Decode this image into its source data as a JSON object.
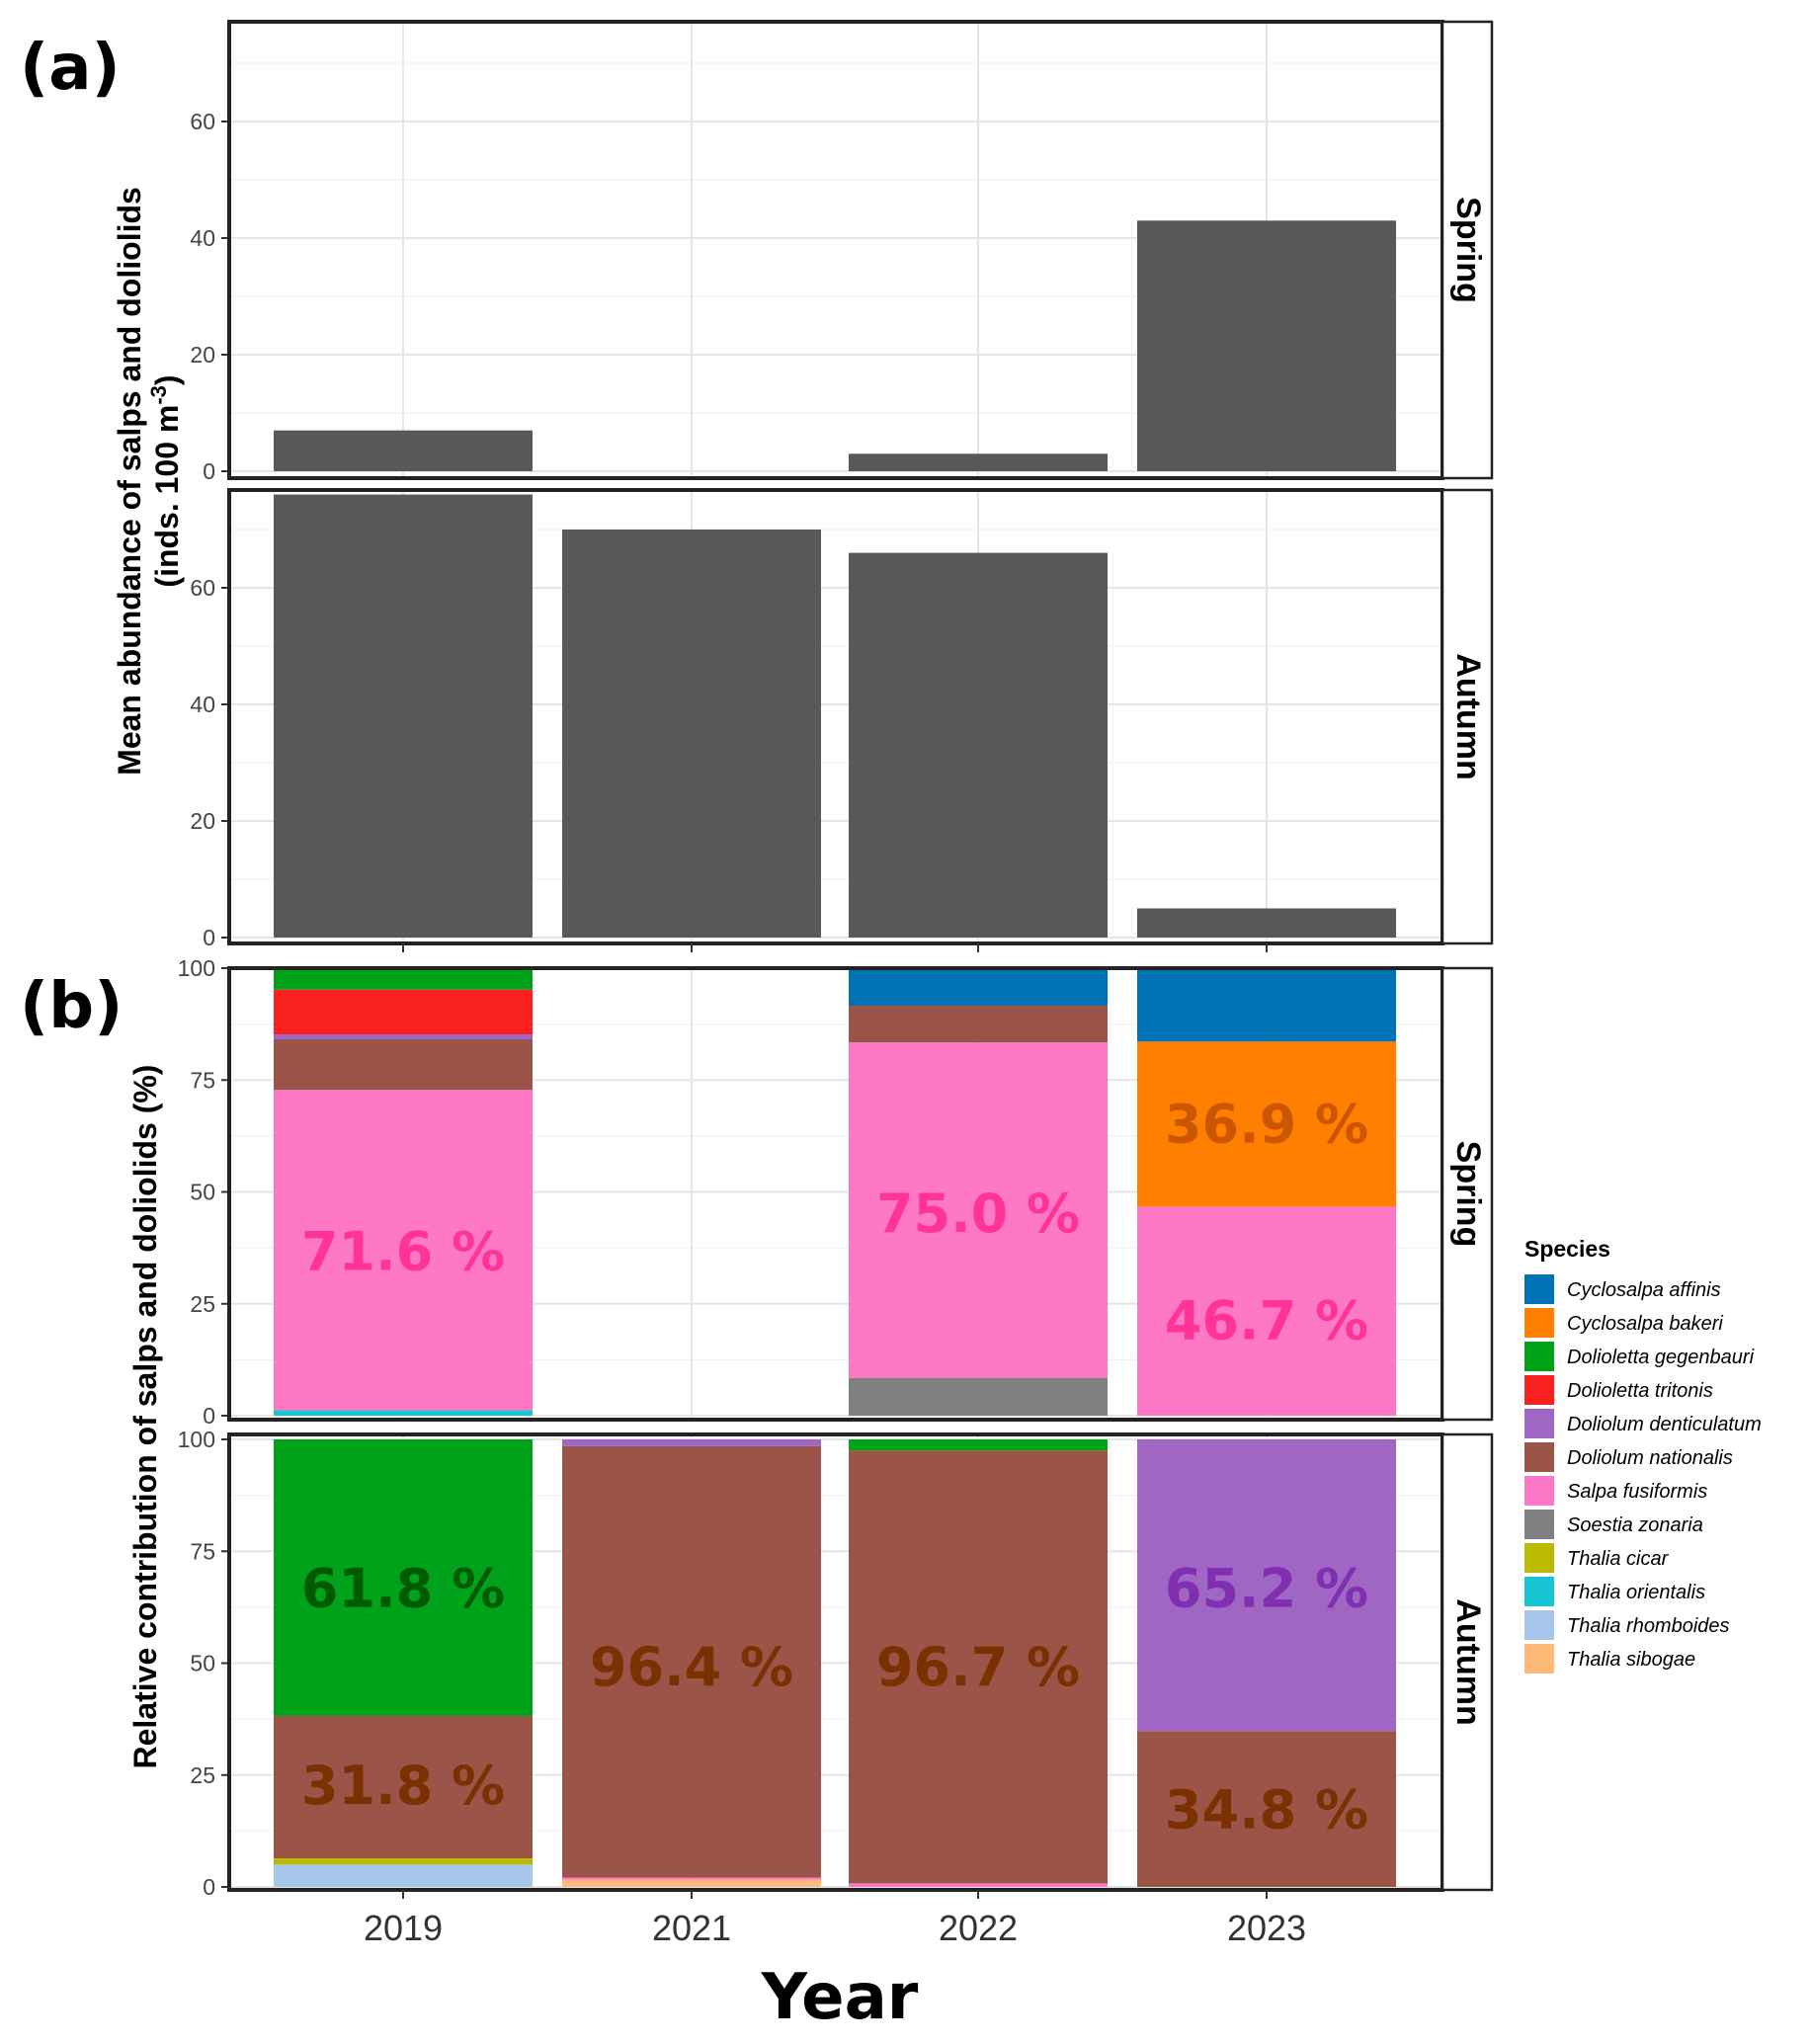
{
  "figure": {
    "xlabel": "Year",
    "years": [
      "2019",
      "2021",
      "2022",
      "2023"
    ]
  },
  "chart_data": [
    {
      "panel_label": "(a)",
      "type": "bar",
      "ylabel_line1": "Mean abundance of salps and doliolids",
      "ylabel_line2": "(inds. 100 m",
      "ylabel_sup": "-3",
      "ylabel_close": ")",
      "ylim": [
        0,
        77
      ],
      "yticks": [
        0,
        20,
        40,
        60
      ],
      "facets": [
        {
          "label": "Spring",
          "categories": [
            "2019",
            "2021",
            "2022",
            "2023"
          ],
          "values": [
            7,
            0,
            3,
            43
          ]
        },
        {
          "label": "Autumn",
          "categories": [
            "2019",
            "2021",
            "2022",
            "2023"
          ],
          "values": [
            76,
            70,
            66,
            5
          ]
        }
      ],
      "bar_color": "#595959"
    },
    {
      "panel_label": "(b)",
      "type": "stacked_bar",
      "ylabel": "Relative contribution of salps and doliolids (%)",
      "ylim": [
        0,
        100
      ],
      "yticks": [
        0,
        25,
        50,
        75,
        100
      ],
      "legend_title": "Species",
      "species": [
        {
          "name": "Cyclosalpa affinis",
          "color": "#0073B5"
        },
        {
          "name": "Cyclosalpa bakeri",
          "color": "#FF7F00"
        },
        {
          "name": "Dolioletta gegenbauri",
          "color": "#00A21A"
        },
        {
          "name": "Dolioletta tritonis",
          "color": "#F92020"
        },
        {
          "name": "Doliolum denticulatum",
          "color": "#A066C4"
        },
        {
          "name": "Doliolum nationalis",
          "color": "#9A5448"
        },
        {
          "name": "Salpa fusiformis",
          "color": "#FF78C8"
        },
        {
          "name": "Soestia zonaria",
          "color": "#808080"
        },
        {
          "name": "Thalia cicar",
          "color": "#BABA00"
        },
        {
          "name": "Thalia orientalis",
          "color": "#18C4D2"
        },
        {
          "name": "Thalia rhomboides",
          "color": "#A8C6EC"
        },
        {
          "name": "Thalia sibogae",
          "color": "#FFBA7A"
        }
      ],
      "facets": [
        {
          "label": "Spring",
          "bars": [
            {
              "year": "2019",
              "segments": [
                {
                  "species": "Thalia orientalis",
                  "value": 1.2
                },
                {
                  "species": "Salpa fusiformis",
                  "value": 71.6
                },
                {
                  "species": "Doliolum nationalis",
                  "value": 11.3
                },
                {
                  "species": "Doliolum denticulatum",
                  "value": 1.1
                },
                {
                  "species": "Dolioletta tritonis",
                  "value": 10.0
                },
                {
                  "species": "Dolioletta gegenbauri",
                  "value": 4.8
                }
              ]
            },
            {
              "year": "2021",
              "segments": []
            },
            {
              "year": "2022",
              "segments": [
                {
                  "species": "Soestia zonaria",
                  "value": 8.4
                },
                {
                  "species": "Salpa fusiformis",
                  "value": 75.0
                },
                {
                  "species": "Doliolum nationalis",
                  "value": 8.2
                },
                {
                  "species": "Cyclosalpa affinis",
                  "value": 8.4
                }
              ]
            },
            {
              "year": "2023",
              "segments": [
                {
                  "species": "Salpa fusiformis",
                  "value": 46.7
                },
                {
                  "species": "Cyclosalpa bakeri",
                  "value": 36.9
                },
                {
                  "species": "Cyclosalpa affinis",
                  "value": 16.4
                }
              ]
            }
          ],
          "annotations": [
            {
              "year": "2019",
              "text": "71.6 %",
              "y": 37,
              "color": "#FF3399"
            },
            {
              "year": "2022",
              "text": "75.0 %",
              "y": 45.5,
              "color": "#FF3399"
            },
            {
              "year": "2023",
              "text": "36.9 %",
              "y": 65.5,
              "color": "#CC5500"
            },
            {
              "year": "2023",
              "text": "46.7 %",
              "y": 21.5,
              "color": "#FF3399"
            }
          ]
        },
        {
          "label": "Autumn",
          "bars": [
            {
              "year": "2019",
              "segments": [
                {
                  "species": "Thalia rhomboides",
                  "value": 5.0
                },
                {
                  "species": "Thalia cicar",
                  "value": 1.4
                },
                {
                  "species": "Doliolum nationalis",
                  "value": 31.8
                },
                {
                  "species": "Dolioletta gegenbauri",
                  "value": 61.8
                }
              ]
            },
            {
              "year": "2021",
              "segments": [
                {
                  "species": "Thalia sibogae",
                  "value": 1.6
                },
                {
                  "species": "Salpa fusiformis",
                  "value": 0.5
                },
                {
                  "species": "Doliolum nationalis",
                  "value": 96.4
                },
                {
                  "species": "Doliolum denticulatum",
                  "value": 1.5
                }
              ]
            },
            {
              "year": "2022",
              "segments": [
                {
                  "species": "Salpa fusiformis",
                  "value": 0.8
                },
                {
                  "species": "Doliolum nationalis",
                  "value": 96.7
                },
                {
                  "species": "Dolioletta gegenbauri",
                  "value": 2.5
                }
              ]
            },
            {
              "year": "2023",
              "segments": [
                {
                  "species": "Doliolum nationalis",
                  "value": 34.8
                },
                {
                  "species": "Doliolum denticulatum",
                  "value": 65.2
                }
              ]
            }
          ],
          "annotations": [
            {
              "year": "2019",
              "text": "61.8 %",
              "y": 67,
              "color": "#005A00"
            },
            {
              "year": "2019",
              "text": "31.8 %",
              "y": 23,
              "color": "#7A3000"
            },
            {
              "year": "2021",
              "text": "96.4 %",
              "y": 49.5,
              "color": "#7A3000"
            },
            {
              "year": "2022",
              "text": "96.7 %",
              "y": 49.5,
              "color": "#7A3000"
            },
            {
              "year": "2023",
              "text": "65.2 %",
              "y": 67,
              "color": "#7F2FAF"
            },
            {
              "year": "2023",
              "text": "34.8 %",
              "y": 17.5,
              "color": "#7A3000"
            }
          ]
        }
      ]
    }
  ]
}
